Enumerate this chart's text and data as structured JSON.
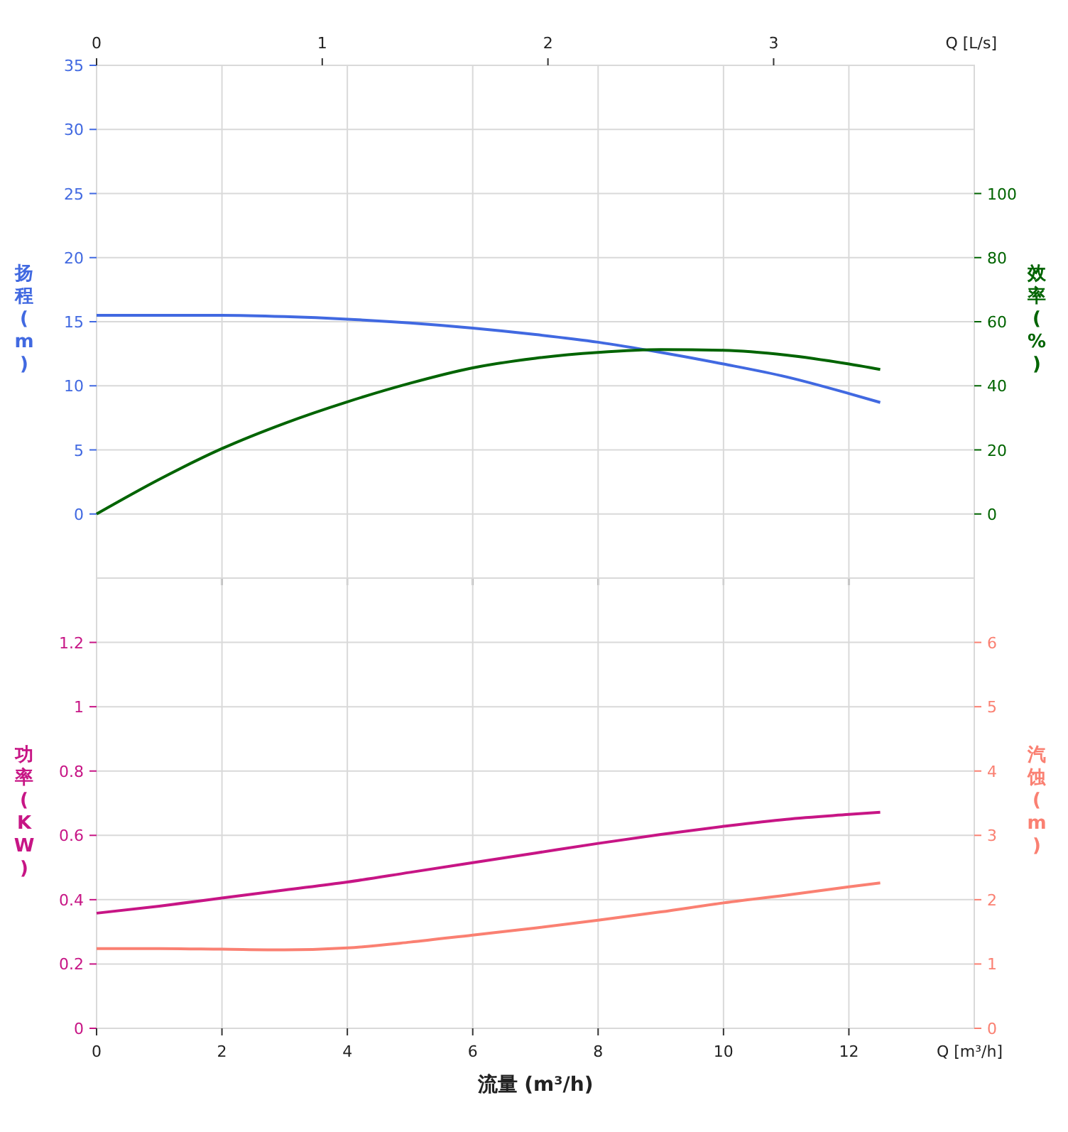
{
  "chart_data": [
    {
      "type": "line",
      "ylabel": "扬程 (m)",
      "y2label": "效率 (%)",
      "x2label": "Q [L/s]",
      "x": [
        0,
        1,
        2,
        3,
        4,
        5,
        6,
        7,
        8,
        9,
        10,
        11,
        12,
        12.5
      ],
      "series": [
        {
          "color": "#4169e1",
          "values": [
            15.5,
            15.5,
            15.5,
            15.4,
            15.2,
            14.9,
            14.5,
            14.0,
            13.4,
            12.6,
            11.7,
            10.7,
            9.4,
            8.7
          ]
        },
        {
          "color": "#006400",
          "axis": "y2",
          "values": [
            0,
            10.8,
            20.4,
            28.3,
            35,
            40.8,
            45.6,
            48.6,
            50.4,
            51.3,
            51.1,
            49.6,
            46.8,
            45.1
          ]
        }
      ],
      "xlim": [
        0,
        14
      ],
      "xticks": [
        0,
        2,
        4,
        6,
        8,
        10,
        12
      ],
      "tick_labels": "y",
      "x2lim": [
        0,
        3.889
      ],
      "x2ticks": [
        0,
        1,
        2,
        3
      ],
      "ylim": [
        -5,
        35
      ],
      "yticks": [
        0,
        5,
        10,
        15,
        20,
        25,
        30,
        35
      ],
      "y2lim": [
        -20,
        140
      ],
      "y2ticks": [
        0,
        20,
        40,
        60,
        80,
        100
      ],
      "grid": true,
      "line_style": "solid"
    },
    {
      "type": "line",
      "xlabel": "流量 (m³/h)",
      "ylabel": "功率 (KW)",
      "y2label": "汽蚀 (m)",
      "annotations": [
        "Q [m³/h]"
      ],
      "x": [
        0,
        1,
        2,
        3,
        4,
        5,
        6,
        7,
        8,
        9,
        10,
        11,
        12,
        12.5
      ],
      "series": [
        {
          "color": "#c71585",
          "values": [
            0.358,
            0.38,
            0.405,
            0.43,
            0.455,
            0.485,
            0.515,
            0.545,
            0.575,
            0.603,
            0.628,
            0.65,
            0.665,
            0.672
          ]
        },
        {
          "color": "#fa8072",
          "axis": "y2",
          "values": [
            1.24,
            1.24,
            1.23,
            1.22,
            1.25,
            1.34,
            1.45,
            1.56,
            1.68,
            1.81,
            1.95,
            2.07,
            2.2,
            2.26
          ]
        }
      ],
      "xlim": [
        0,
        14
      ],
      "xticks": [
        0,
        2,
        4,
        6,
        8,
        10,
        12
      ],
      "ylim": [
        0,
        1.4
      ],
      "yticks": [
        0,
        0.2,
        0.4,
        0.6,
        0.8,
        1,
        1.2
      ],
      "y2lim": [
        0,
        7
      ],
      "y2ticks": [
        0,
        1,
        2,
        3,
        4,
        5,
        6
      ],
      "grid": true,
      "line_style": "solid"
    }
  ]
}
